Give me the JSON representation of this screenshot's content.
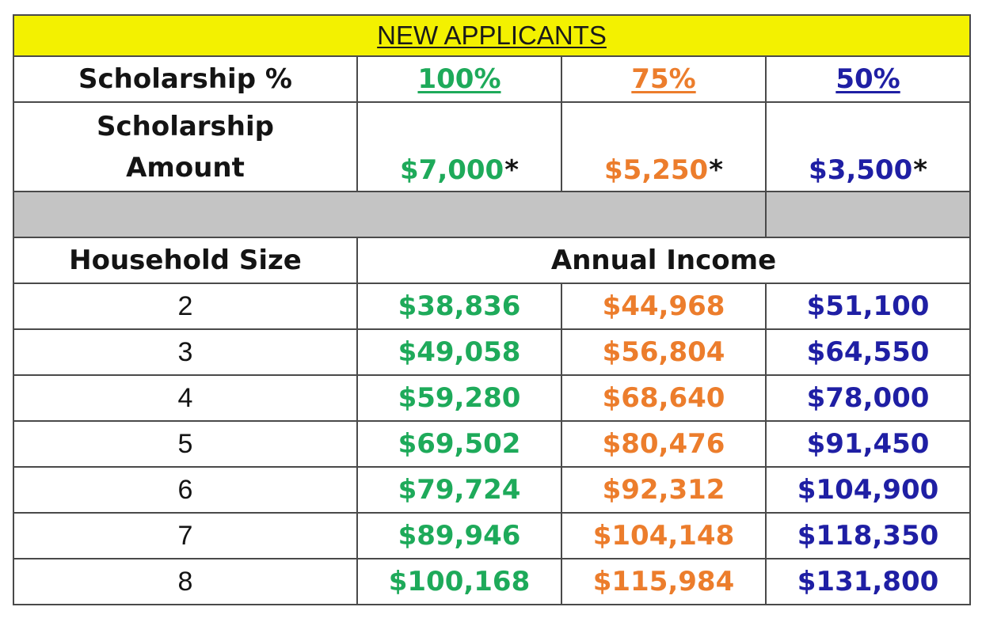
{
  "title": "NEW APPLICANTS",
  "scholarship_pct": {
    "label": "Scholarship %",
    "tiers": [
      "100%",
      "75%",
      "50%"
    ]
  },
  "scholarship_amount": {
    "label_line1": "Scholarship",
    "label_line2": "Amount",
    "amounts": [
      "$7,000",
      "$5,250",
      "$3,500"
    ],
    "marker": "*"
  },
  "income_header": {
    "household_label": "Household Size",
    "income_label": "Annual Income"
  },
  "rows": [
    {
      "size": "2",
      "values": [
        "$38,836",
        "$44,968",
        "$51,100"
      ]
    },
    {
      "size": "3",
      "values": [
        "$49,058",
        "$56,804",
        "$64,550"
      ]
    },
    {
      "size": "4",
      "values": [
        "$59,280",
        "$68,640",
        "$78,000"
      ]
    },
    {
      "size": "5",
      "values": [
        "$69,502",
        "$80,476",
        "$91,450"
      ]
    },
    {
      "size": "6",
      "values": [
        "$79,724",
        "$92,312",
        "$104,900"
      ]
    },
    {
      "size": "7",
      "values": [
        "$89,946",
        "$104,148",
        "$118,350"
      ]
    },
    {
      "size": "8",
      "values": [
        "$100,168",
        "$115,984",
        "$131,800"
      ]
    }
  ],
  "colors": {
    "title_bg": "#f3f100",
    "tier_100": "#1eaa5a",
    "tier_75": "#ec7d2c",
    "tier_50": "#1f1fa4",
    "separator": "#c4c4c4"
  }
}
